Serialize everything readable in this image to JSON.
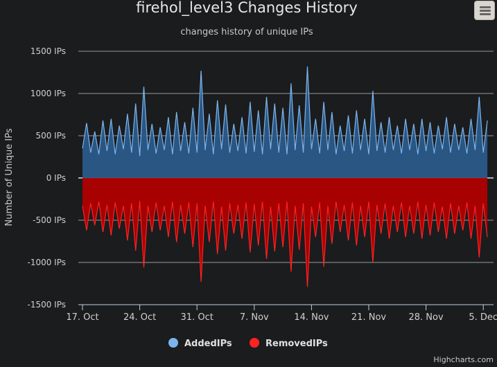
{
  "chart_data": {
    "type": "area",
    "title": "firehol_level3 Changes History",
    "subtitle": "changes history of unique IPs",
    "ylabel": "Number of Unique IPs",
    "xlabel": "",
    "ylim": [
      -1500,
      1500
    ],
    "y_ticks": [
      1500,
      1000,
      500,
      0,
      -500,
      -1000,
      -1500
    ],
    "y_tick_suffix": " IPs",
    "x_range": [
      "2016-10-17",
      "2016-12-06"
    ],
    "x_tick_labels": [
      "17. Oct",
      "24. Oct",
      "31. Oct",
      "7. Nov",
      "14. Nov",
      "21. Nov",
      "28. Nov",
      "5. Dec"
    ],
    "grid": true,
    "legend_position": "bottom-center",
    "series": [
      {
        "name": "AddedIPs",
        "color": "#7cb5ec",
        "fill": "#2b5a8a",
        "values": [
          [
            0,
            350
          ],
          [
            0.5,
            650
          ],
          [
            1,
            300
          ],
          [
            1.5,
            550
          ],
          [
            2,
            280
          ],
          [
            2.5,
            680
          ],
          [
            3,
            320
          ],
          [
            3.5,
            700
          ],
          [
            4,
            280
          ],
          [
            4.5,
            620
          ],
          [
            5,
            340
          ],
          [
            5.5,
            760
          ],
          [
            6,
            300
          ],
          [
            6.5,
            880
          ],
          [
            7,
            260
          ],
          [
            7.5,
            1080
          ],
          [
            8,
            330
          ],
          [
            8.5,
            640
          ],
          [
            9,
            290
          ],
          [
            9.5,
            600
          ],
          [
            10,
            330
          ],
          [
            10.5,
            720
          ],
          [
            11,
            280
          ],
          [
            11.5,
            780
          ],
          [
            12,
            320
          ],
          [
            12.5,
            660
          ],
          [
            13,
            290
          ],
          [
            13.5,
            830
          ],
          [
            14,
            300
          ],
          [
            14.5,
            1270
          ],
          [
            15,
            330
          ],
          [
            15.5,
            760
          ],
          [
            16,
            280
          ],
          [
            16.5,
            920
          ],
          [
            17,
            340
          ],
          [
            17.5,
            870
          ],
          [
            18,
            300
          ],
          [
            18.5,
            640
          ],
          [
            19,
            320
          ],
          [
            19.5,
            720
          ],
          [
            20,
            290
          ],
          [
            20.5,
            900
          ],
          [
            21,
            310
          ],
          [
            21.5,
            800
          ],
          [
            22,
            280
          ],
          [
            22.5,
            960
          ],
          [
            23,
            340
          ],
          [
            23.5,
            880
          ],
          [
            24,
            300
          ],
          [
            24.5,
            830
          ],
          [
            25,
            280
          ],
          [
            25.5,
            1120
          ],
          [
            26,
            330
          ],
          [
            26.5,
            860
          ],
          [
            27,
            300
          ],
          [
            27.5,
            1320
          ],
          [
            28,
            340
          ],
          [
            28.5,
            700
          ],
          [
            29,
            290
          ],
          [
            29.5,
            900
          ],
          [
            30,
            330
          ],
          [
            30.5,
            780
          ],
          [
            31,
            280
          ],
          [
            31.5,
            620
          ],
          [
            32,
            320
          ],
          [
            32.5,
            740
          ],
          [
            33,
            290
          ],
          [
            33.5,
            800
          ],
          [
            34,
            330
          ],
          [
            34.5,
            700
          ],
          [
            35,
            280
          ],
          [
            35.5,
            1030
          ],
          [
            36,
            320
          ],
          [
            36.5,
            660
          ],
          [
            37,
            300
          ],
          [
            37.5,
            720
          ],
          [
            38,
            330
          ],
          [
            38.5,
            620
          ],
          [
            39,
            290
          ],
          [
            39.5,
            700
          ],
          [
            40,
            330
          ],
          [
            40.5,
            640
          ],
          [
            41,
            280
          ],
          [
            41.5,
            700
          ],
          [
            42,
            320
          ],
          [
            42.5,
            660
          ],
          [
            43,
            290
          ],
          [
            43.5,
            620
          ],
          [
            44,
            340
          ],
          [
            44.5,
            720
          ],
          [
            45,
            300
          ],
          [
            45.5,
            640
          ],
          [
            46,
            330
          ],
          [
            46.5,
            600
          ],
          [
            47,
            290
          ],
          [
            47.5,
            700
          ],
          [
            48,
            330
          ],
          [
            48.5,
            960
          ],
          [
            49,
            300
          ],
          [
            49.5,
            680
          ]
        ]
      },
      {
        "name": "RemovedIPs",
        "color": "#ff2222",
        "fill": "#b00000",
        "values": [
          [
            0,
            -330
          ],
          [
            0.5,
            -620
          ],
          [
            1,
            -300
          ],
          [
            1.5,
            -560
          ],
          [
            2,
            -280
          ],
          [
            2.5,
            -640
          ],
          [
            3,
            -320
          ],
          [
            3.5,
            -680
          ],
          [
            4,
            -290
          ],
          [
            4.5,
            -600
          ],
          [
            5,
            -330
          ],
          [
            5.5,
            -740
          ],
          [
            6,
            -300
          ],
          [
            6.5,
            -860
          ],
          [
            7,
            -270
          ],
          [
            7.5,
            -1060
          ],
          [
            8,
            -330
          ],
          [
            8.5,
            -640
          ],
          [
            9,
            -290
          ],
          [
            9.5,
            -620
          ],
          [
            10,
            -330
          ],
          [
            10.5,
            -700
          ],
          [
            11,
            -280
          ],
          [
            11.5,
            -760
          ],
          [
            12,
            -320
          ],
          [
            12.5,
            -660
          ],
          [
            13,
            -290
          ],
          [
            13.5,
            -820
          ],
          [
            14,
            -300
          ],
          [
            14.5,
            -1230
          ],
          [
            15,
            -330
          ],
          [
            15.5,
            -760
          ],
          [
            16,
            -280
          ],
          [
            16.5,
            -900
          ],
          [
            17,
            -340
          ],
          [
            17.5,
            -860
          ],
          [
            18,
            -300
          ],
          [
            18.5,
            -660
          ],
          [
            19,
            -320
          ],
          [
            19.5,
            -720
          ],
          [
            20,
            -290
          ],
          [
            20.5,
            -880
          ],
          [
            21,
            -310
          ],
          [
            21.5,
            -800
          ],
          [
            22,
            -280
          ],
          [
            22.5,
            -960
          ],
          [
            23,
            -340
          ],
          [
            23.5,
            -870
          ],
          [
            24,
            -300
          ],
          [
            24.5,
            -820
          ],
          [
            25,
            -280
          ],
          [
            25.5,
            -1110
          ],
          [
            26,
            -330
          ],
          [
            26.5,
            -850
          ],
          [
            27,
            -300
          ],
          [
            27.5,
            -1290
          ],
          [
            28,
            -340
          ],
          [
            28.5,
            -700
          ],
          [
            29,
            -290
          ],
          [
            29.5,
            -1050
          ],
          [
            30,
            -330
          ],
          [
            30.5,
            -780
          ],
          [
            31,
            -280
          ],
          [
            31.5,
            -640
          ],
          [
            32,
            -320
          ],
          [
            32.5,
            -740
          ],
          [
            33,
            -290
          ],
          [
            33.5,
            -800
          ],
          [
            34,
            -330
          ],
          [
            34.5,
            -700
          ],
          [
            35,
            -280
          ],
          [
            35.5,
            -1000
          ],
          [
            36,
            -320
          ],
          [
            36.5,
            -660
          ],
          [
            37,
            -300
          ],
          [
            37.5,
            -720
          ],
          [
            38,
            -330
          ],
          [
            38.5,
            -640
          ],
          [
            39,
            -290
          ],
          [
            39.5,
            -700
          ],
          [
            40,
            -330
          ],
          [
            40.5,
            -660
          ],
          [
            41,
            -280
          ],
          [
            41.5,
            -720
          ],
          [
            42,
            -320
          ],
          [
            42.5,
            -680
          ],
          [
            43,
            -290
          ],
          [
            43.5,
            -640
          ],
          [
            44,
            -340
          ],
          [
            44.5,
            -720
          ],
          [
            45,
            -300
          ],
          [
            45.5,
            -660
          ],
          [
            46,
            -330
          ],
          [
            46.5,
            -620
          ],
          [
            47,
            -290
          ],
          [
            47.5,
            -720
          ],
          [
            48,
            -330
          ],
          [
            48.5,
            -940
          ],
          [
            49,
            -300
          ],
          [
            49.5,
            -700
          ]
        ]
      }
    ]
  },
  "credits": "Highcharts.com"
}
